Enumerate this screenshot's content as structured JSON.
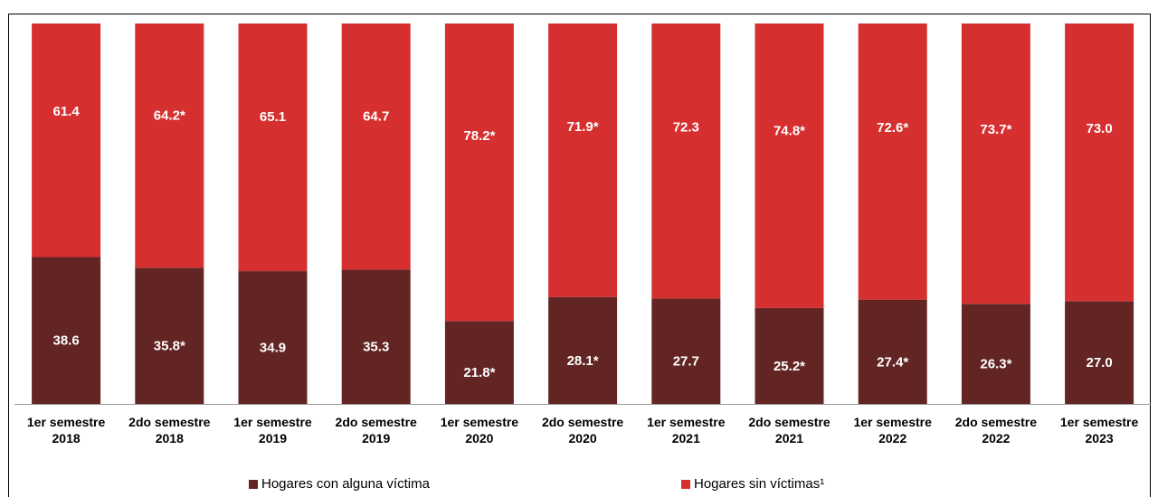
{
  "chart_data": {
    "type": "stacked-bar",
    "categories": [
      "1er semestre 2018",
      "2do semestre 2018",
      "1er semestre 2019",
      "2do semestre 2019",
      "1er semestre 2020",
      "2do semestre 2020",
      "1er semestre 2021",
      "2do semestre 2021",
      "1er semestre 2022",
      "2do semestre 2022",
      "1er semestre 2023"
    ],
    "series": [
      {
        "name": "Hogares con alguna víctima",
        "color": "#632523",
        "values": [
          38.6,
          35.8,
          34.9,
          35.3,
          21.8,
          28.1,
          27.7,
          25.2,
          27.4,
          26.3,
          27.0
        ],
        "value_labels": [
          "38.6",
          "35.8*",
          "34.9",
          "35.3",
          "21.8*",
          "28.1*",
          "27.7",
          "25.2*",
          "27.4*",
          "26.3*",
          "27.0"
        ]
      },
      {
        "name": "Hogares sin víctimas¹",
        "color": "#d62f2f",
        "values": [
          61.4,
          64.2,
          65.1,
          64.7,
          78.2,
          71.9,
          72.3,
          74.8,
          72.6,
          73.7,
          73.0
        ],
        "value_labels": [
          "61.4",
          "64.2*",
          "65.1",
          "64.7",
          "78.2*",
          "71.9*",
          "72.3",
          "74.8*",
          "72.6*",
          "73.7*",
          "73.0"
        ]
      }
    ],
    "ylim": [
      0,
      100
    ]
  }
}
